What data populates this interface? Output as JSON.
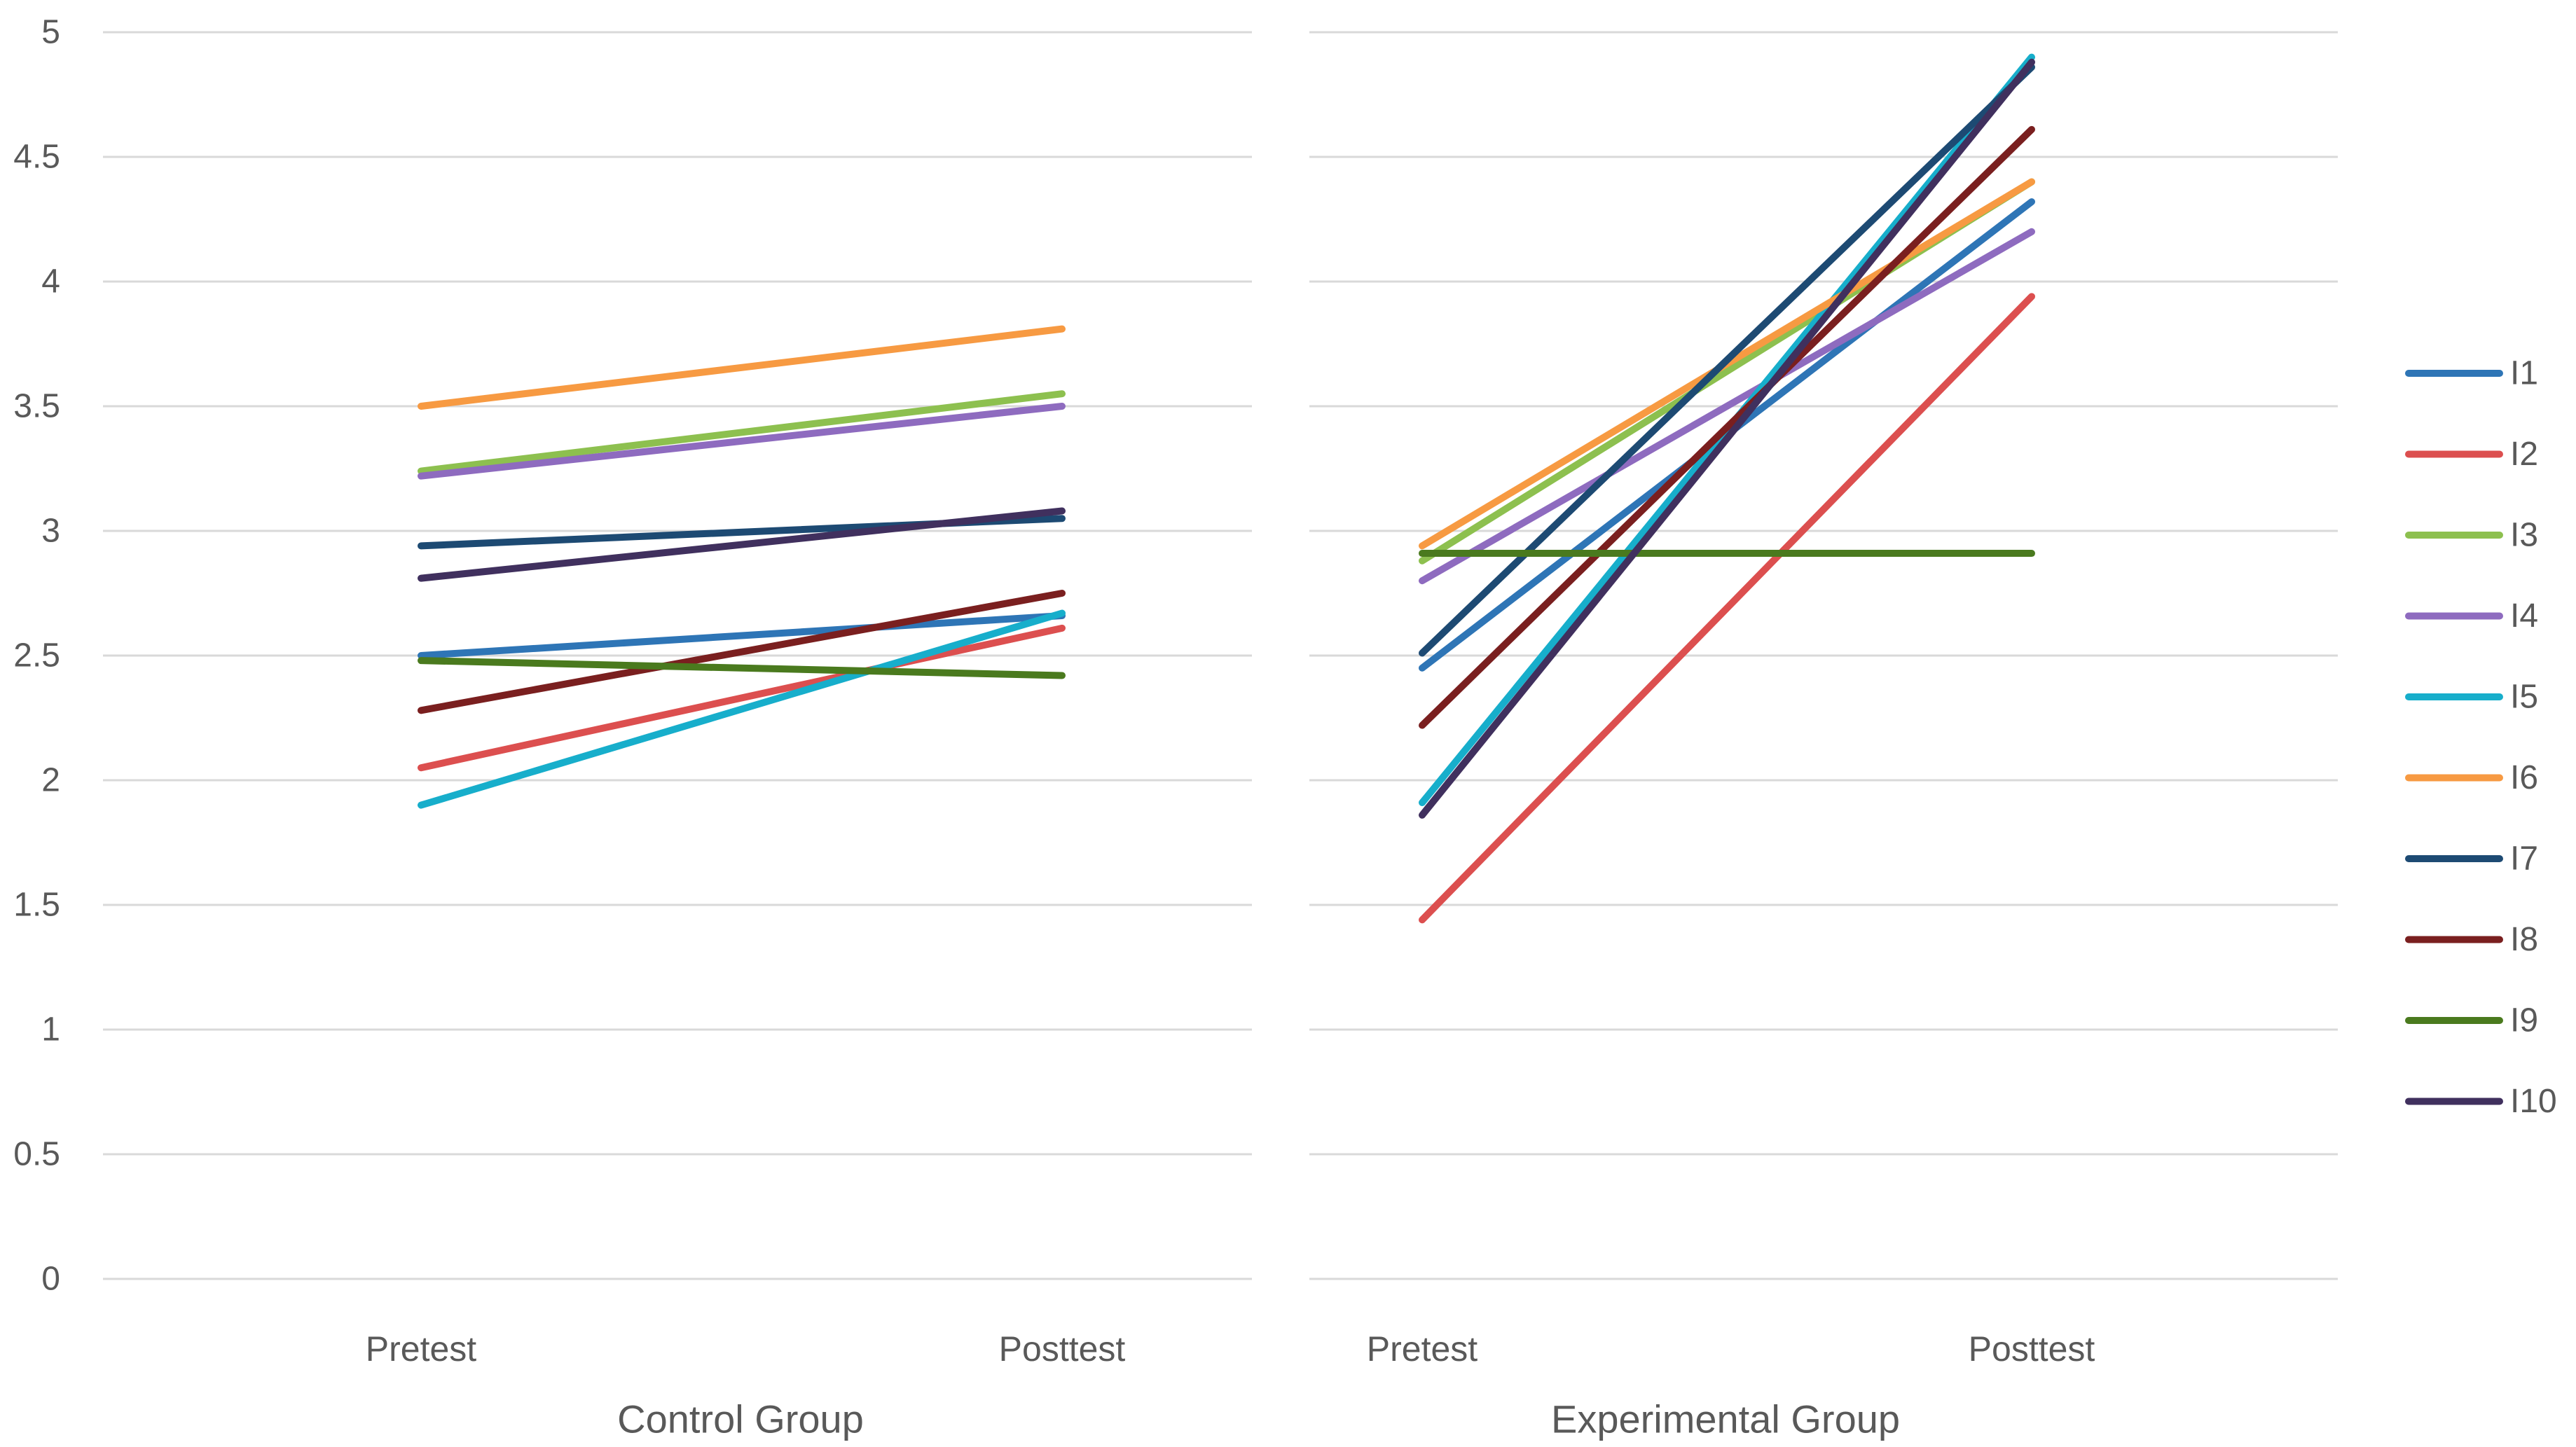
{
  "chart_data": {
    "type": "line",
    "title": "",
    "ylabel": "",
    "ylim": [
      0,
      5
    ],
    "y_ticks": [
      "0",
      "0.5",
      "1",
      "1.5",
      "2",
      "2.5",
      "3",
      "3.5",
      "4",
      "4.5",
      "5"
    ],
    "y_tick_values": [
      0,
      0.5,
      1,
      1.5,
      2,
      2.5,
      3,
      3.5,
      4,
      4.5,
      5
    ],
    "grid": true,
    "legend_position": "right",
    "categories": [
      "Pretest",
      "Posttest"
    ],
    "panels": [
      {
        "name": "Control Group",
        "categories": [
          "Pretest",
          "Posttest"
        ],
        "series": [
          {
            "name": "I1",
            "color": "#2E75B6",
            "values": [
              2.5,
              2.66
            ]
          },
          {
            "name": "I2",
            "color": "#DC4F4F",
            "values": [
              2.05,
              2.61
            ]
          },
          {
            "name": "I3",
            "color": "#8DC04F",
            "values": [
              3.24,
              3.55
            ]
          },
          {
            "name": "I4",
            "color": "#8E6BBF",
            "values": [
              3.22,
              3.5
            ]
          },
          {
            "name": "I5",
            "color": "#17AECB",
            "values": [
              1.9,
              2.67
            ]
          },
          {
            "name": "I6",
            "color": "#F79A42",
            "values": [
              3.5,
              3.81
            ]
          },
          {
            "name": "I7",
            "color": "#1D4A73",
            "values": [
              2.94,
              3.05
            ]
          },
          {
            "name": "I8",
            "color": "#7A1F1F",
            "values": [
              2.28,
              2.75
            ]
          },
          {
            "name": "I9",
            "color": "#4A7A1E",
            "values": [
              2.48,
              2.42
            ]
          },
          {
            "name": "I10",
            "color": "#40305E",
            "values": [
              2.81,
              3.08
            ]
          }
        ]
      },
      {
        "name": "Experimental Group",
        "categories": [
          "Pretest",
          "Posttest"
        ],
        "series": [
          {
            "name": "I1",
            "color": "#2E75B6",
            "values": [
              2.45,
              4.32
            ]
          },
          {
            "name": "I2",
            "color": "#DC4F4F",
            "values": [
              1.44,
              3.94
            ]
          },
          {
            "name": "I3",
            "color": "#8DC04F",
            "values": [
              2.88,
              4.4
            ]
          },
          {
            "name": "I4",
            "color": "#8E6BBF",
            "values": [
              2.8,
              4.2
            ]
          },
          {
            "name": "I5",
            "color": "#17AECB",
            "values": [
              1.91,
              4.9
            ]
          },
          {
            "name": "I6",
            "color": "#F79A42",
            "values": [
              2.94,
              4.4
            ]
          },
          {
            "name": "I7",
            "color": "#1D4A73",
            "values": [
              2.51,
              4.86
            ]
          },
          {
            "name": "I8",
            "color": "#7A1F1F",
            "values": [
              2.22,
              4.61
            ]
          },
          {
            "name": "I9",
            "color": "#4A7A1E",
            "values": [
              2.91,
              2.91
            ]
          },
          {
            "name": "I10",
            "color": "#40305E",
            "values": [
              1.86,
              4.88
            ]
          }
        ]
      }
    ],
    "legend": [
      "I1",
      "I2",
      "I3",
      "I4",
      "I5",
      "I6",
      "I7",
      "I8",
      "I9",
      "I10"
    ]
  }
}
